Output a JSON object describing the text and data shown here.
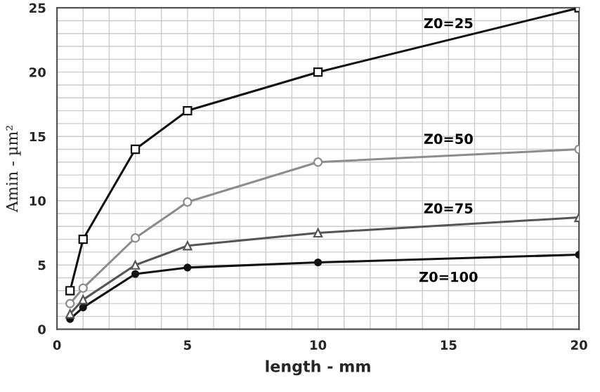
{
  "chart_data": {
    "type": "line",
    "xlabel": "length - mm",
    "ylabel": "Amin - µm²",
    "x": [
      0.5,
      1,
      3,
      5,
      10,
      20
    ],
    "xlim": [
      0,
      20
    ],
    "xticks": [
      0,
      5,
      10,
      15,
      20
    ],
    "ylim": [
      0,
      25
    ],
    "yticks": [
      0,
      5,
      10,
      15,
      20,
      25
    ],
    "grid": true,
    "legend": false,
    "line_style": "solid",
    "series": [
      {
        "name": "Z0=25",
        "color": "#111111",
        "marker": "square",
        "values": [
          3,
          7,
          14,
          17,
          20,
          25
        ]
      },
      {
        "name": "Z0=50",
        "color": "#8c8c8c",
        "marker": "circle",
        "values": [
          2,
          3.2,
          7.1,
          9.9,
          13,
          14
        ]
      },
      {
        "name": "Z0=75",
        "color": "#555555",
        "marker": "triangle",
        "values": [
          1.2,
          2.3,
          5,
          6.5,
          7.5,
          8.7
        ]
      },
      {
        "name": "Z0=100",
        "color": "#111111",
        "marker": "circle",
        "values": [
          0.8,
          1.7,
          4.3,
          4.8,
          5.2,
          5.8
        ]
      }
    ]
  }
}
